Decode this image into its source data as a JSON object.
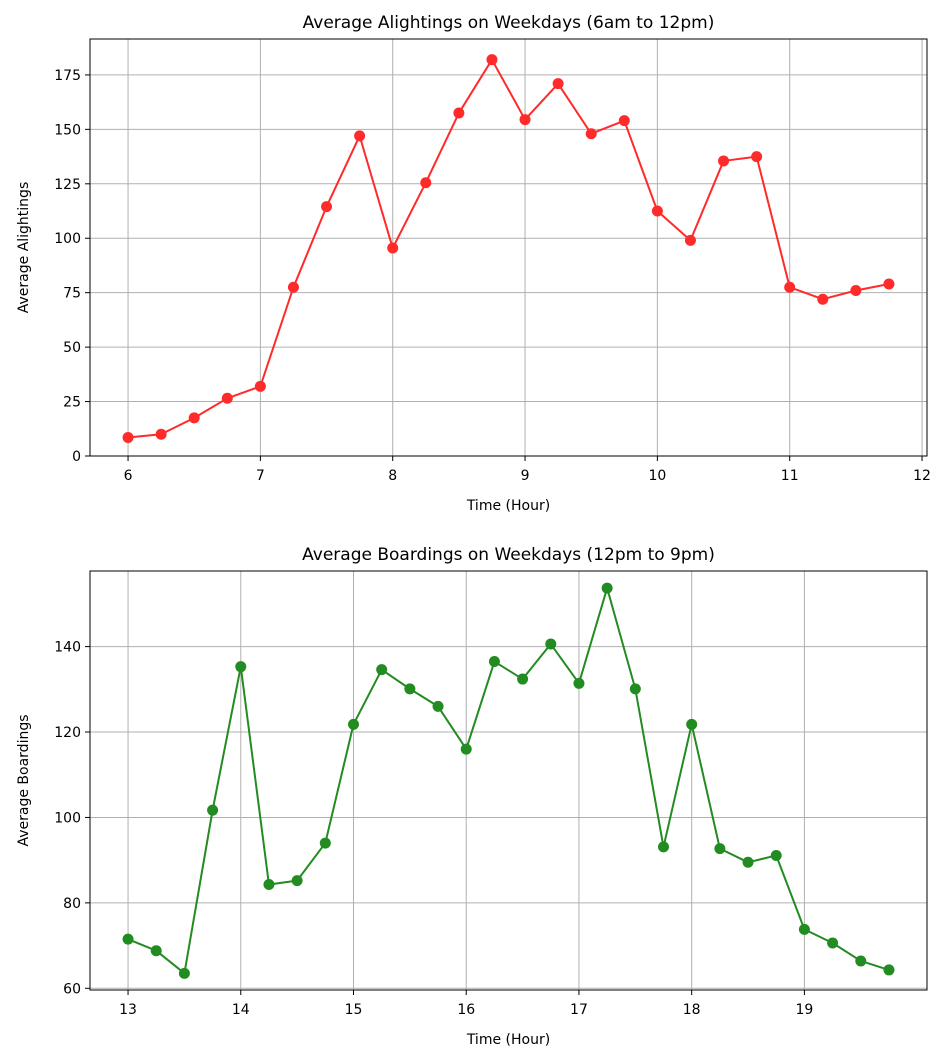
{
  "chart_data": [
    {
      "type": "line",
      "title": "Average Alightings on Weekdays (6am to 12pm)",
      "xlabel": "Time (Hour)",
      "ylabel": "Average Alightings",
      "xlim": [
        5.7125,
        12.0375
      ],
      "ylim": [
        0,
        191.5
      ],
      "xticks": [
        6,
        7,
        8,
        9,
        10,
        11,
        12
      ],
      "yticks": [
        0,
        25,
        50,
        75,
        100,
        125,
        150,
        175
      ],
      "grid": true,
      "series": [
        {
          "color": "#ff2a2a",
          "marker": "circle",
          "x": [
            6,
            6.25,
            6.5,
            6.75,
            7,
            7.25,
            7.5,
            7.75,
            8,
            8.25,
            8.5,
            8.75,
            9,
            9.25,
            9.5,
            9.75,
            10,
            10.25,
            10.5,
            10.75,
            11,
            11.25,
            11.5,
            11.75
          ],
          "y": [
            8.5,
            10,
            17.5,
            26.5,
            32,
            77.5,
            114.5,
            147,
            95.5,
            125.5,
            157.5,
            182,
            154.5,
            171,
            148,
            154,
            112.5,
            99,
            135.5,
            137.5,
            77.5,
            72,
            76,
            79
          ]
        }
      ]
    },
    {
      "type": "line",
      "title": "Average Boardings on Weekdays (12pm to 9pm)",
      "xlabel": "Time (Hour)",
      "ylabel": "Average Boardings",
      "xlim": [
        12.6625,
        20.0875
      ],
      "ylim": [
        59.6,
        157.7
      ],
      "xticks": [
        13,
        14,
        15,
        16,
        17,
        18,
        19
      ],
      "yticks": [
        60,
        80,
        100,
        120,
        140
      ],
      "grid": true,
      "series": [
        {
          "color": "#228b22",
          "marker": "circle",
          "x": [
            13,
            13.25,
            13.5,
            13.75,
            14,
            14.25,
            14.5,
            14.75,
            15,
            15.25,
            15.5,
            15.75,
            16,
            16.25,
            16.5,
            16.75,
            17,
            17.25,
            17.5,
            17.75,
            18,
            18.25,
            18.5,
            18.75,
            19,
            19.25,
            19.5,
            19.75
          ],
          "y": [
            71.5,
            68.8,
            63.5,
            101.7,
            135.3,
            84.3,
            85.2,
            94,
            121.8,
            134.6,
            130.1,
            126,
            116,
            136.5,
            132.4,
            140.6,
            131.4,
            153.7,
            130.1,
            93.1,
            121.8,
            92.7,
            89.5,
            91.1,
            73.8,
            70.6,
            66.4,
            64.3
          ]
        }
      ]
    }
  ]
}
